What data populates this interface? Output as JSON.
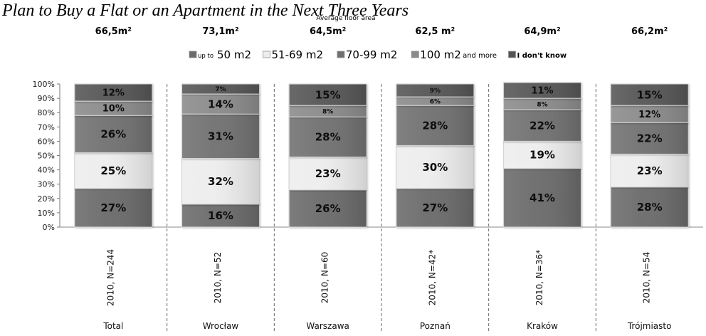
{
  "chart_data": {
    "type": "bar",
    "stacked": true,
    "percent_stacked": true,
    "title": "Plan to Buy a Flat or an Apartment in the Next Three Years",
    "subtitle": "Average floor area",
    "categories": [
      "Total",
      "Wrocław",
      "Warszawa",
      "Poznań",
      "Kraków",
      "Trójmiasto"
    ],
    "sample_labels": [
      "2010, N=244",
      "2010, N=52",
      "2010, N=60",
      "2010, N=42*",
      "2010, N=36*",
      "2010, N=54"
    ],
    "average_floor_area": [
      "66,5m²",
      "73,1m²",
      "64,5m²",
      "62,5 m²",
      "64,9m²",
      "66,2m²"
    ],
    "ylim": [
      0,
      100
    ],
    "yticks": [
      "0%",
      "10%",
      "20%",
      "30%",
      "40%",
      "50%",
      "60%",
      "70%",
      "80%",
      "90%",
      "100%"
    ],
    "grid": false,
    "legend_position": "top",
    "series": [
      {
        "name": "up to 50 m2",
        "legend_parts": [
          "up to",
          "50 m2"
        ],
        "color": "#6b6b6b",
        "label_color": "#0e0e0e",
        "values": [
          27,
          16,
          26,
          27,
          41,
          28
        ],
        "labels": [
          "27%",
          "16%",
          "26%",
          "27%",
          "41%",
          "28%"
        ]
      },
      {
        "name": "51-69 m2",
        "legend_parts": [
          "51-69 m2"
        ],
        "color": "#ededed",
        "label_color": "#0e0e0e",
        "values": [
          25,
          32,
          23,
          30,
          19,
          23
        ],
        "labels": [
          "25%",
          "32%",
          "23%",
          "30%",
          "19%",
          "23%"
        ]
      },
      {
        "name": "70-99 m2",
        "legend_parts": [
          "70-99 m2"
        ],
        "color": "#707070",
        "label_color": "#0e0e0e",
        "values": [
          26,
          31,
          28,
          28,
          22,
          22
        ],
        "labels": [
          "26%",
          "31%",
          "28%",
          "28%",
          "22%",
          "22%"
        ]
      },
      {
        "name": "100 m2 and more",
        "legend_parts": [
          "100 m2",
          "and more"
        ],
        "color": "#8a8a8a",
        "label_color": "#0e0e0e",
        "values": [
          10,
          14,
          8,
          6,
          8,
          12
        ],
        "labels": [
          "10%",
          "14%",
          "8%",
          "6%",
          "8%",
          "12%"
        ]
      },
      {
        "name": "I don't know",
        "legend_parts": [
          "I don't know"
        ],
        "color": "#545454",
        "label_color": "#0e0e0e",
        "values": [
          12,
          7,
          15,
          9,
          11,
          15
        ],
        "labels": [
          "12%",
          "7%",
          "15%",
          "9%",
          "11%",
          "15%"
        ]
      }
    ]
  }
}
